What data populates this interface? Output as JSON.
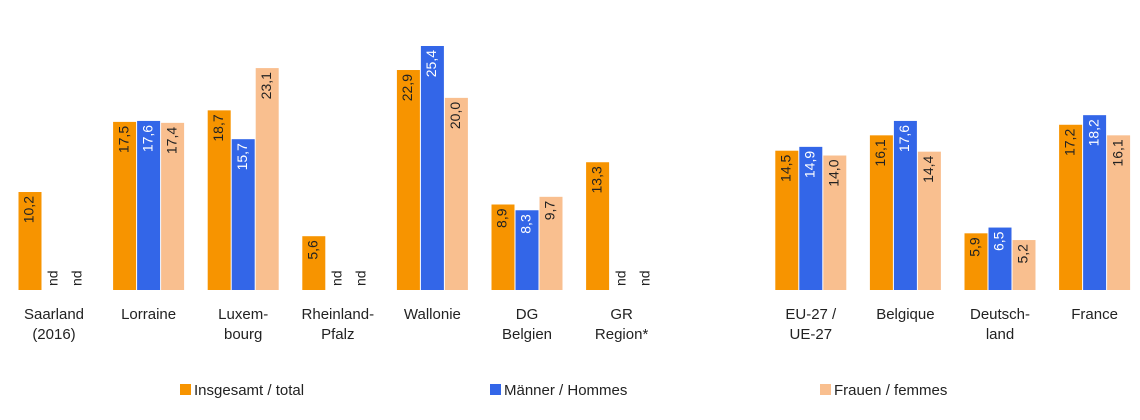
{
  "chart_data": {
    "type": "bar",
    "categories": [
      "Saarland\n(2016)",
      "Lorraine",
      "Luxem-\nbourg",
      "Rheinland-\nPfalz",
      "Wallonie",
      "DG\nBelgien",
      "GR\nRegion*",
      "EU-27 /\nUE-27",
      "Belgique",
      "Deutsch-\nland",
      "France"
    ],
    "series": [
      {
        "name": "Insgesamt / total",
        "color": "#f79400",
        "values": [
          10.2,
          17.5,
          18.7,
          5.6,
          22.9,
          8.9,
          13.3,
          14.5,
          16.1,
          5.9,
          17.2
        ],
        "value_labels": [
          "10,2",
          "17,5",
          "18,7",
          "5,6",
          "22,9",
          "8,9",
          "13,3",
          "14,5",
          "16,1",
          "5,9",
          "17,2"
        ]
      },
      {
        "name": "Männer / Hommes",
        "color": "#3366e8",
        "values": [
          null,
          17.6,
          15.7,
          null,
          25.4,
          8.3,
          null,
          14.9,
          17.6,
          6.5,
          18.2
        ],
        "value_labels": [
          "nd",
          "17,6",
          "15,7",
          "nd",
          "25,4",
          "8,3",
          "nd",
          "14,9",
          "17,6",
          "6,5",
          "18,2"
        ]
      },
      {
        "name": "Frauen / femmes",
        "color": "#f9bf8f",
        "values": [
          null,
          17.4,
          23.1,
          null,
          20.0,
          9.7,
          null,
          14.0,
          14.4,
          5.2,
          16.1
        ],
        "value_labels": [
          "nd",
          "17,4",
          "23,1",
          "nd",
          "20,0",
          "9,7",
          "nd",
          "14,0",
          "14,4",
          "5,2",
          "16,1"
        ]
      }
    ]
  }
}
